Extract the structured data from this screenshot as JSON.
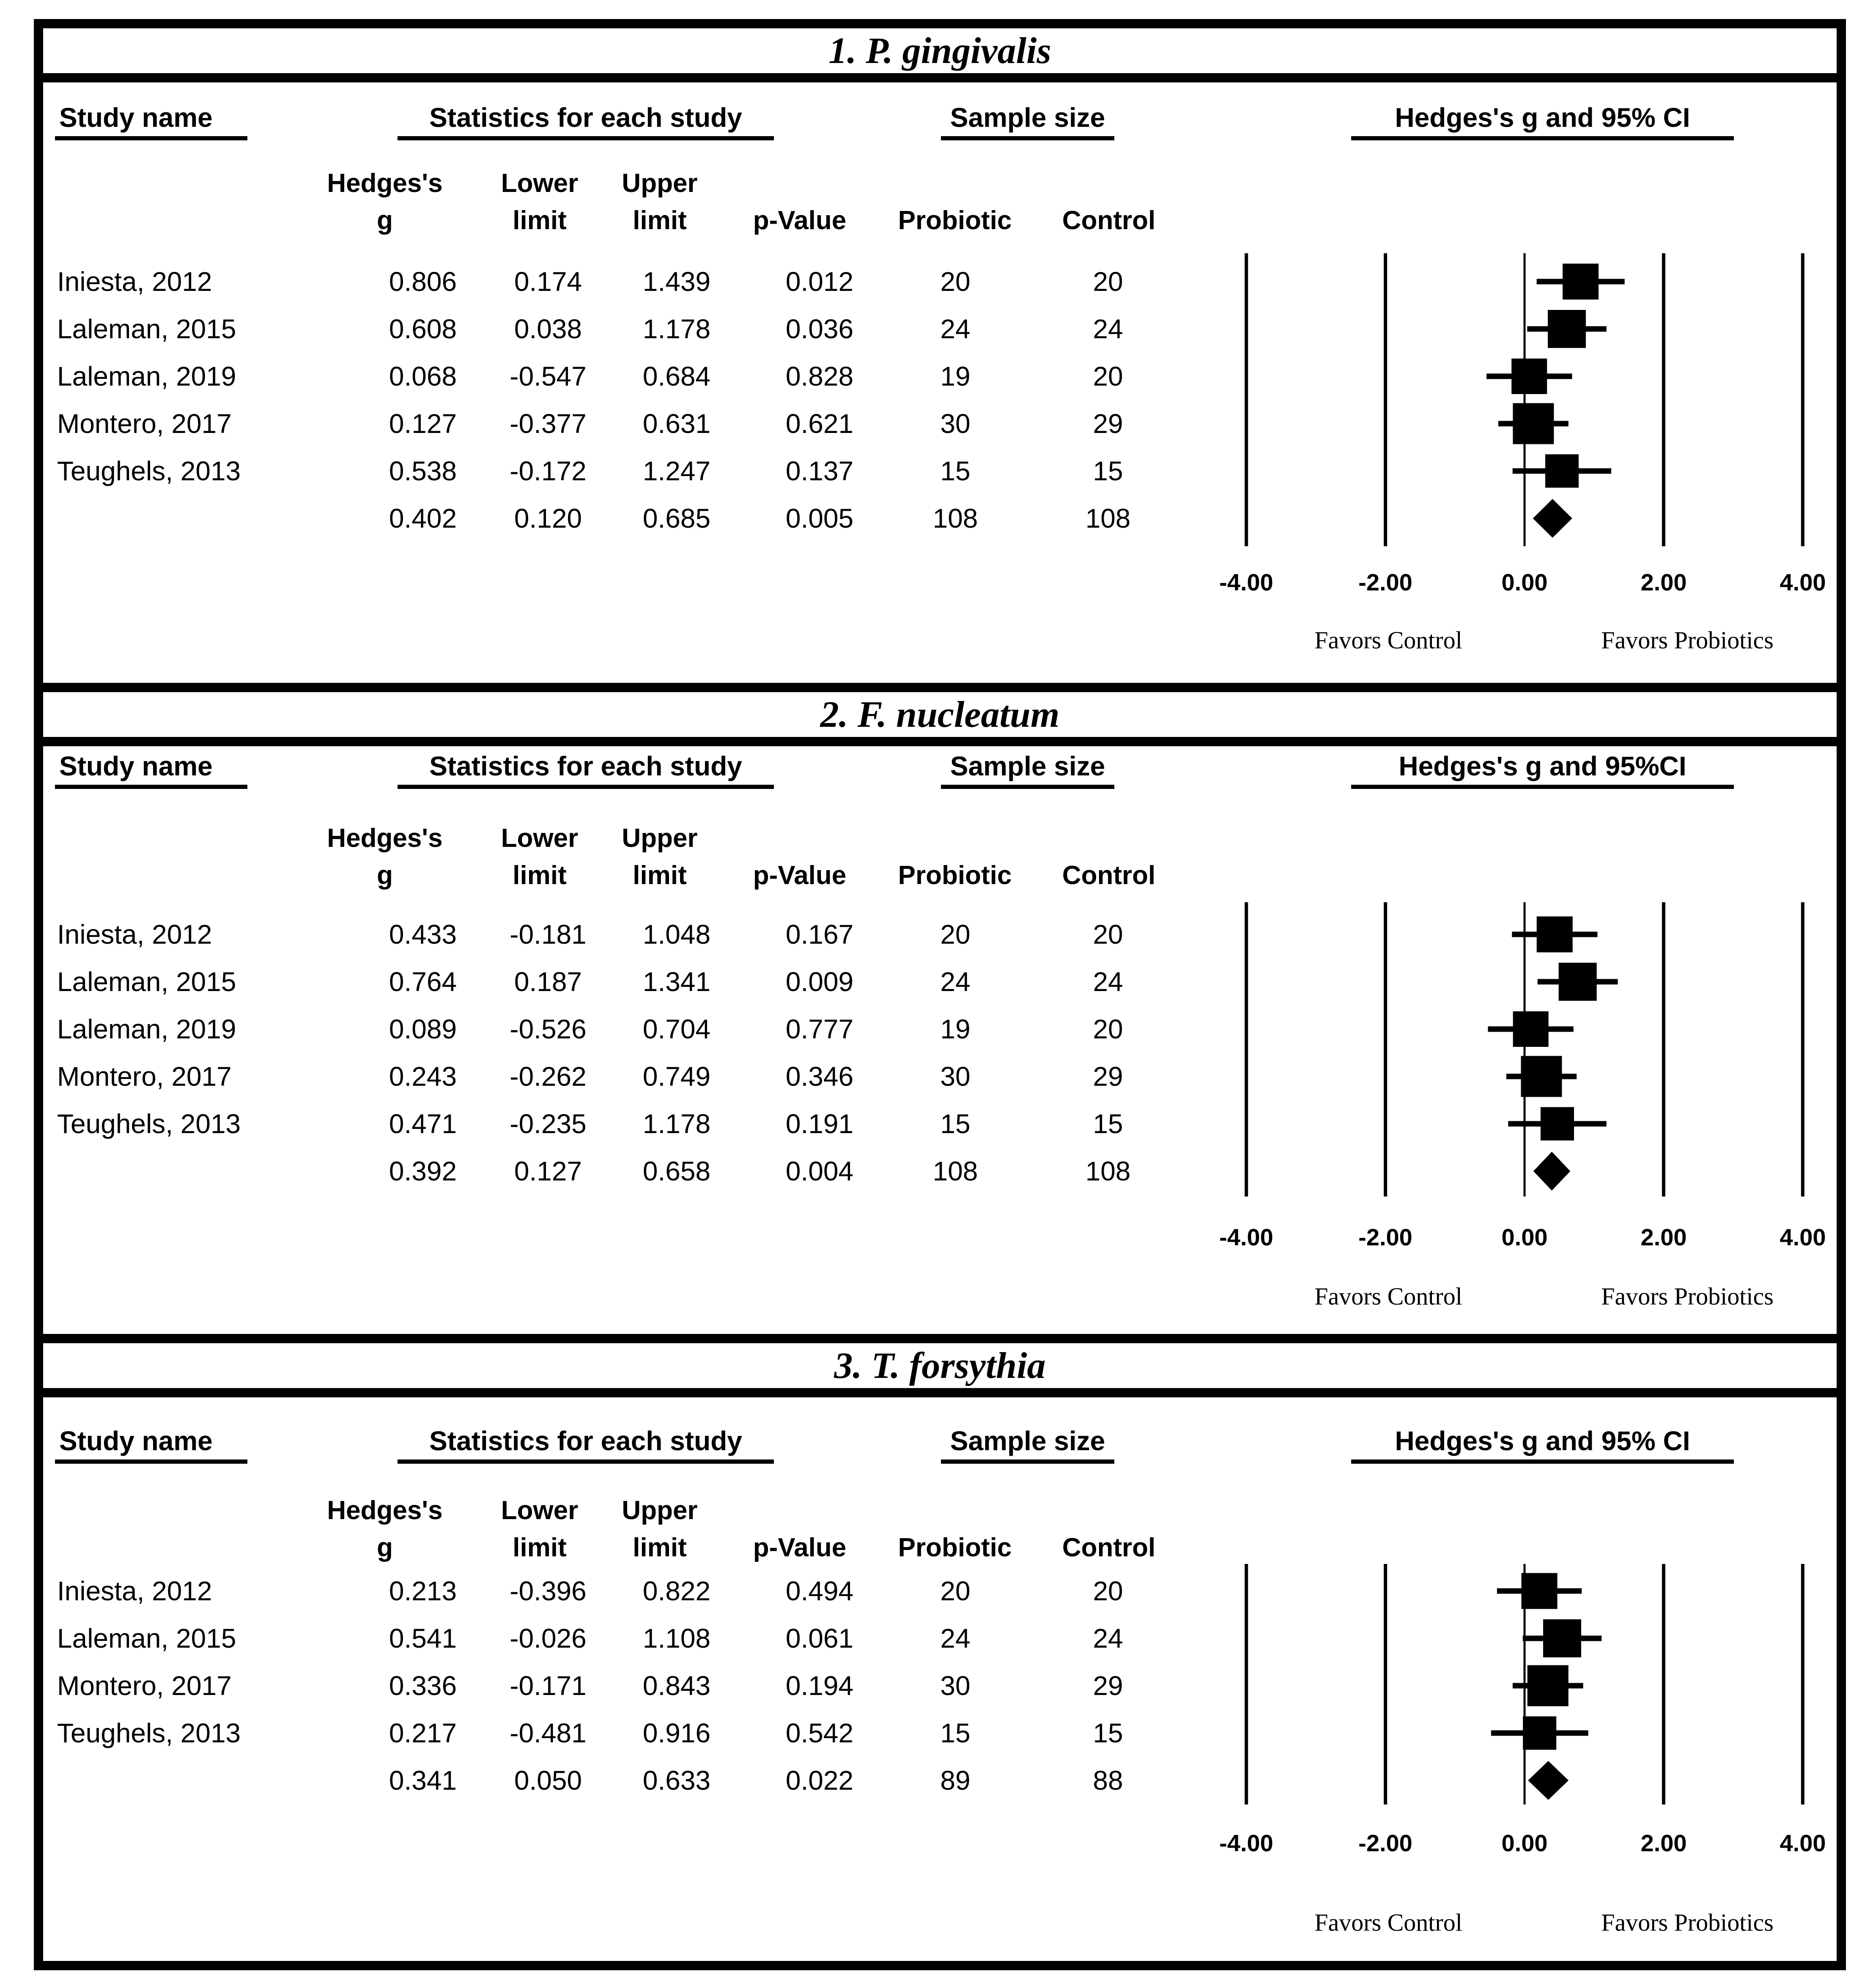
{
  "headers": {
    "study_name": "Study name",
    "stats": "Statistics for each study",
    "sample": "Sample size",
    "hedges_ci": "Hedges's g and 95% CI",
    "hedges_ci_tight": "Hedges's g and 95%CI",
    "sub": {
      "hedges_line1": "Hedges's",
      "hedges_line2": "g",
      "lower_line1": "Lower",
      "lower_line2": "limit",
      "upper_line1": "Upper",
      "upper_line2": "limit",
      "p_value": "p-Value",
      "probiotic": "Probiotic",
      "control": "Control"
    }
  },
  "axis": {
    "ticks": [
      "-4.00",
      "-2.00",
      "0.00",
      "2.00",
      "4.00"
    ],
    "tick_values": [
      -4,
      -2,
      0,
      2,
      4
    ],
    "xlim": [
      -4,
      4
    ],
    "favors_left": "Favors Control",
    "favors_right": "Favors Probiotics"
  },
  "colors": {
    "foreground": "#000000",
    "background": "#ffffff"
  },
  "chart_data": [
    {
      "type": "forest",
      "title": "1. P. gingivalis",
      "effect_measure": "Hedges's g",
      "xlim": [
        -4,
        4
      ],
      "studies": [
        {
          "name": "Iniesta, 2012",
          "g": "0.806",
          "lower": "0.174",
          "upper": "1.439",
          "p": "0.012",
          "probiotic": "20",
          "control": "20"
        },
        {
          "name": "Laleman, 2015",
          "g": "0.608",
          "lower": "0.038",
          "upper": "1.178",
          "p": "0.036",
          "probiotic": "24",
          "control": "24"
        },
        {
          "name": "Laleman, 2019",
          "g": "0.068",
          "lower": "-0.547",
          "upper": "0.684",
          "p": "0.828",
          "probiotic": "19",
          "control": "20"
        },
        {
          "name": "Montero, 2017",
          "g": "0.127",
          "lower": "-0.377",
          "upper": "0.631",
          "p": "0.621",
          "probiotic": "30",
          "control": "29"
        },
        {
          "name": "Teughels, 2013",
          "g": "0.538",
          "lower": "-0.172",
          "upper": "1.247",
          "p": "0.137",
          "probiotic": "15",
          "control": "15"
        }
      ],
      "summary": {
        "g": "0.402",
        "lower": "0.120",
        "upper": "0.685",
        "p": "0.005",
        "probiotic": "108",
        "control": "108"
      }
    },
    {
      "type": "forest",
      "title": "2. F. nucleatum",
      "effect_measure": "Hedges's g",
      "xlim": [
        -4,
        4
      ],
      "studies": [
        {
          "name": "Iniesta, 2012",
          "g": "0.433",
          "lower": "-0.181",
          "upper": "1.048",
          "p": "0.167",
          "probiotic": "20",
          "control": "20"
        },
        {
          "name": "Laleman, 2015",
          "g": "0.764",
          "lower": "0.187",
          "upper": "1.341",
          "p": "0.009",
          "probiotic": "24",
          "control": "24"
        },
        {
          "name": "Laleman, 2019",
          "g": "0.089",
          "lower": "-0.526",
          "upper": "0.704",
          "p": "0.777",
          "probiotic": "19",
          "control": "20"
        },
        {
          "name": "Montero, 2017",
          "g": "0.243",
          "lower": "-0.262",
          "upper": "0.749",
          "p": "0.346",
          "probiotic": "30",
          "control": "29"
        },
        {
          "name": "Teughels, 2013",
          "g": "0.471",
          "lower": "-0.235",
          "upper": "1.178",
          "p": "0.191",
          "probiotic": "15",
          "control": "15"
        }
      ],
      "summary": {
        "g": "0.392",
        "lower": "0.127",
        "upper": "0.658",
        "p": "0.004",
        "probiotic": "108",
        "control": "108"
      }
    },
    {
      "type": "forest",
      "title": "3. T. forsythia",
      "effect_measure": "Hedges's g",
      "xlim": [
        -4,
        4
      ],
      "studies": [
        {
          "name": "Iniesta, 2012",
          "g": "0.213",
          "lower": "-0.396",
          "upper": "0.822",
          "p": "0.494",
          "probiotic": "20",
          "control": "20"
        },
        {
          "name": "Laleman, 2015",
          "g": "0.541",
          "lower": "-0.026",
          "upper": "1.108",
          "p": "0.061",
          "probiotic": "24",
          "control": "24"
        },
        {
          "name": "Montero, 2017",
          "g": "0.336",
          "lower": "-0.171",
          "upper": "0.843",
          "p": "0.194",
          "probiotic": "30",
          "control": "29"
        },
        {
          "name": "Teughels, 2013",
          "g": "0.217",
          "lower": "-0.481",
          "upper": "0.916",
          "p": "0.542",
          "probiotic": "15",
          "control": "15"
        }
      ],
      "summary": {
        "g": "0.341",
        "lower": "0.050",
        "upper": "0.633",
        "p": "0.022",
        "probiotic": "89",
        "control": "88"
      }
    }
  ]
}
